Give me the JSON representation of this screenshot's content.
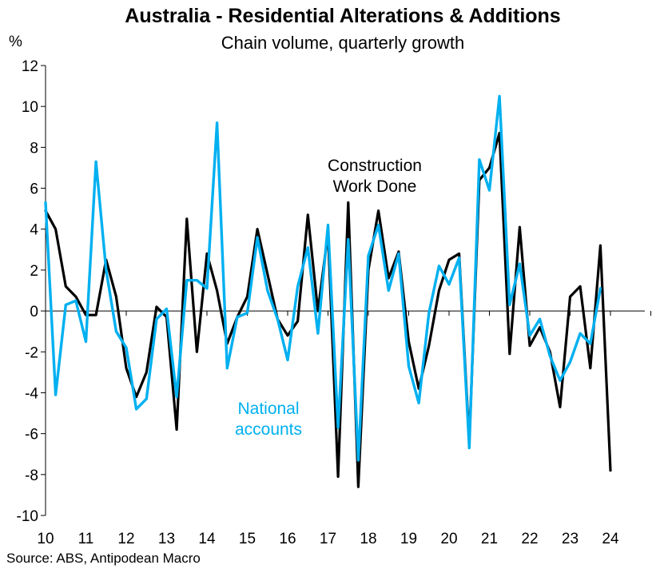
{
  "chart_data": {
    "type": "line",
    "title": "Australia - Residential Alterations & Additions",
    "subtitle": "Chain volume, quarterly growth",
    "ylabel": "%",
    "xlabel": "",
    "ylim": [
      -10,
      12
    ],
    "yticks": [
      12,
      10,
      8,
      6,
      4,
      2,
      0,
      -2,
      -4,
      -6,
      -8,
      -10
    ],
    "xticks": [
      "10",
      "11",
      "12",
      "13",
      "14",
      "15",
      "16",
      "17",
      "18",
      "19",
      "20",
      "21",
      "22",
      "23",
      "24"
    ],
    "x_range": [
      2010,
      2025
    ],
    "annotations": [
      {
        "series": "Construction Work Done",
        "lines": [
          "Construction",
          "Work Done"
        ]
      },
      {
        "series": "National accounts",
        "lines": [
          "National",
          "accounts"
        ]
      }
    ],
    "source": "Source: ABS, Antipodean Macro",
    "series": [
      {
        "name": "Construction Work Done",
        "color": "#000000",
        "start": 2010.0,
        "step": 0.25,
        "values": [
          4.9,
          4.0,
          1.2,
          0.7,
          -0.2,
          -0.2,
          2.5,
          0.7,
          -2.8,
          -4.2,
          -3.0,
          0.2,
          -0.3,
          -5.8,
          4.5,
          -2.0,
          2.8,
          1.0,
          -1.6,
          -0.3,
          0.7,
          4.0,
          1.8,
          -0.4,
          -1.2,
          -0.5,
          4.7,
          0.0,
          3.8,
          -8.1,
          5.3,
          -8.6,
          2.0,
          4.9,
          1.6,
          2.9,
          -1.5,
          -3.8,
          -1.7,
          1.0,
          2.5,
          2.8,
          -6.4,
          6.4,
          7.0,
          8.7,
          -2.1,
          4.1,
          -1.7,
          -0.8,
          -2.0,
          -4.7,
          0.7,
          1.2,
          -2.8,
          3.2,
          -7.8
        ]
      },
      {
        "name": "National accounts",
        "color": "#00b0f0",
        "start": 2010.0,
        "step": 0.25,
        "values": [
          5.3,
          -4.1,
          0.3,
          0.5,
          -1.5,
          7.3,
          2.0,
          -1.0,
          -1.8,
          -4.8,
          -4.3,
          -0.4,
          0.1,
          -4.2,
          1.5,
          1.5,
          1.1,
          9.2,
          -2.8,
          -0.3,
          -0.1,
          3.6,
          1.0,
          -0.4,
          -2.4,
          1.2,
          3.1,
          -1.1,
          4.2,
          -5.7,
          3.5,
          -7.3,
          2.7,
          4.2,
          1.0,
          2.8,
          -2.7,
          -4.5,
          -0.1,
          2.2,
          1.3,
          2.6,
          -6.7,
          7.4,
          5.9,
          10.5,
          0.3,
          2.3,
          -1.2,
          -0.4,
          -2.2,
          -3.4,
          -2.5,
          -1.1,
          -1.6,
          1.1
        ]
      }
    ]
  }
}
